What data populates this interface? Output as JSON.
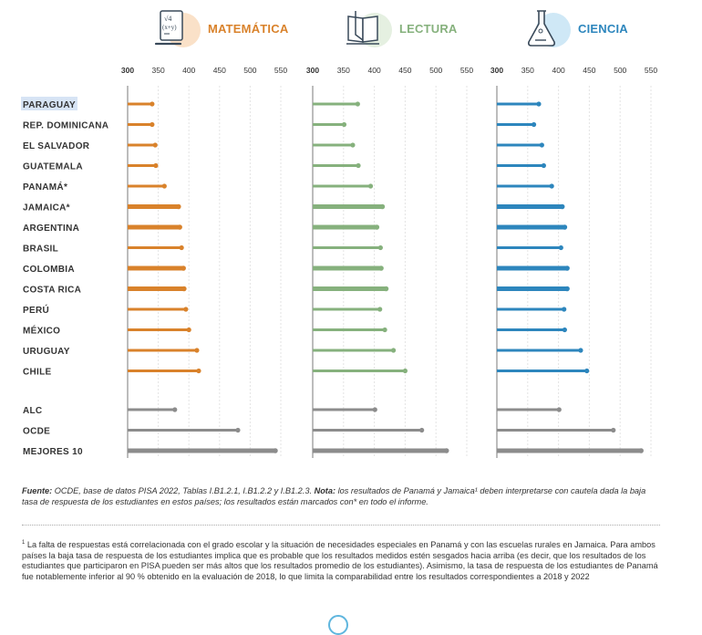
{
  "subjects": [
    {
      "key": "matematica",
      "label": "MATEMÁTICA",
      "icon": "math-paper-icon",
      "color": "#d9822b",
      "blob": "#f6c99a"
    },
    {
      "key": "lectura",
      "label": "LECTURA",
      "icon": "open-book-icon",
      "color": "#86b17d",
      "blob": "#cfe3c9"
    },
    {
      "key": "ciencia",
      "label": "CIENCIA",
      "icon": "flask-icon",
      "color": "#2d86bd",
      "blob": "#a8d5ef"
    }
  ],
  "chart_data": {
    "type": "bar",
    "orientation": "horizontal",
    "title": "",
    "xlabel": "",
    "ylabel": "",
    "xlim": [
      300,
      550
    ],
    "xticks": [
      "300",
      "350",
      "400",
      "450",
      "500",
      "550"
    ],
    "grid": true,
    "highlighted_category": "PARAGUAY",
    "categories": [
      "PARAGUAY",
      "REP. DOMINICANA",
      "EL SALVADOR",
      "GUATEMALA",
      "PANAMÁ*",
      "JAMAICA*",
      "ARGENTINA",
      "BRASIL",
      "COLOMBIA",
      "COSTA RICA",
      "PERÚ",
      "MÉXICO",
      "URUGUAY",
      "CHILE",
      "ALC",
      "OCDE",
      "MEJORES 10"
    ],
    "category_group": [
      "country",
      "country",
      "country",
      "country",
      "country",
      "country",
      "country",
      "country",
      "country",
      "country",
      "country",
      "country",
      "country",
      "country",
      "reference",
      "reference",
      "reference"
    ],
    "thick": [
      false,
      false,
      false,
      false,
      false,
      true,
      true,
      false,
      true,
      true,
      false,
      false,
      false,
      false,
      false,
      false,
      true
    ],
    "reference_color": "#8c8c8c",
    "series": [
      {
        "name": "MATEMÁTICA",
        "color": "#d9822b",
        "values": [
          340,
          340,
          345,
          346,
          360,
          383,
          385,
          388,
          391,
          392,
          395,
          400,
          413,
          416,
          377,
          480,
          541
        ]
      },
      {
        "name": "LECTURA",
        "color": "#86b17d",
        "values": [
          373,
          351,
          365,
          374,
          394,
          413,
          404,
          410,
          411,
          419,
          409,
          417,
          431,
          450,
          401,
          477,
          517
        ]
      },
      {
        "name": "CIENCIA",
        "color": "#2d86bd",
        "values": [
          368,
          360,
          373,
          376,
          389,
          406,
          410,
          404,
          414,
          414,
          409,
          410,
          436,
          446,
          401,
          489,
          534
        ]
      }
    ]
  },
  "footer": {
    "fuente_label": "Fuente:",
    "fuente_text": " OCDE, base de datos PISA 2022, Tablas I.B1.2.1, I.B1.2.2 y I.B1.2.3. ",
    "nota_label": "Nota:",
    "nota_text": " los resultados de Panamá y Jamaica¹ deben interpretarse con cautela dada la baja tasa de respuesta de los estudiantes en estos países; los resultados están marcados con* en todo el informe.",
    "footnote_mark": "1",
    "footnote_text": " La falta de respuestas está correlacionada con el grado escolar y la situación de necesidades especiales en Panamá y con las escuelas rurales en Jamaica. Para ambos países la baja tasa de respuesta de los estudiantes implica que es probable que los resultados medidos estén sesgados hacia arriba (es decir, que los resultados de los estudiantes que participaron en PISA pueden ser más altos que los resultados promedio de los estudiantes). Asimismo, la tasa de respuesta de los estudiantes de Panamá fue notablemente inferior al 90 % obtenido en la evaluación de 2018, lo que limita la comparabilidad entre los resultados correspondientes a 2018 y 2022"
  }
}
